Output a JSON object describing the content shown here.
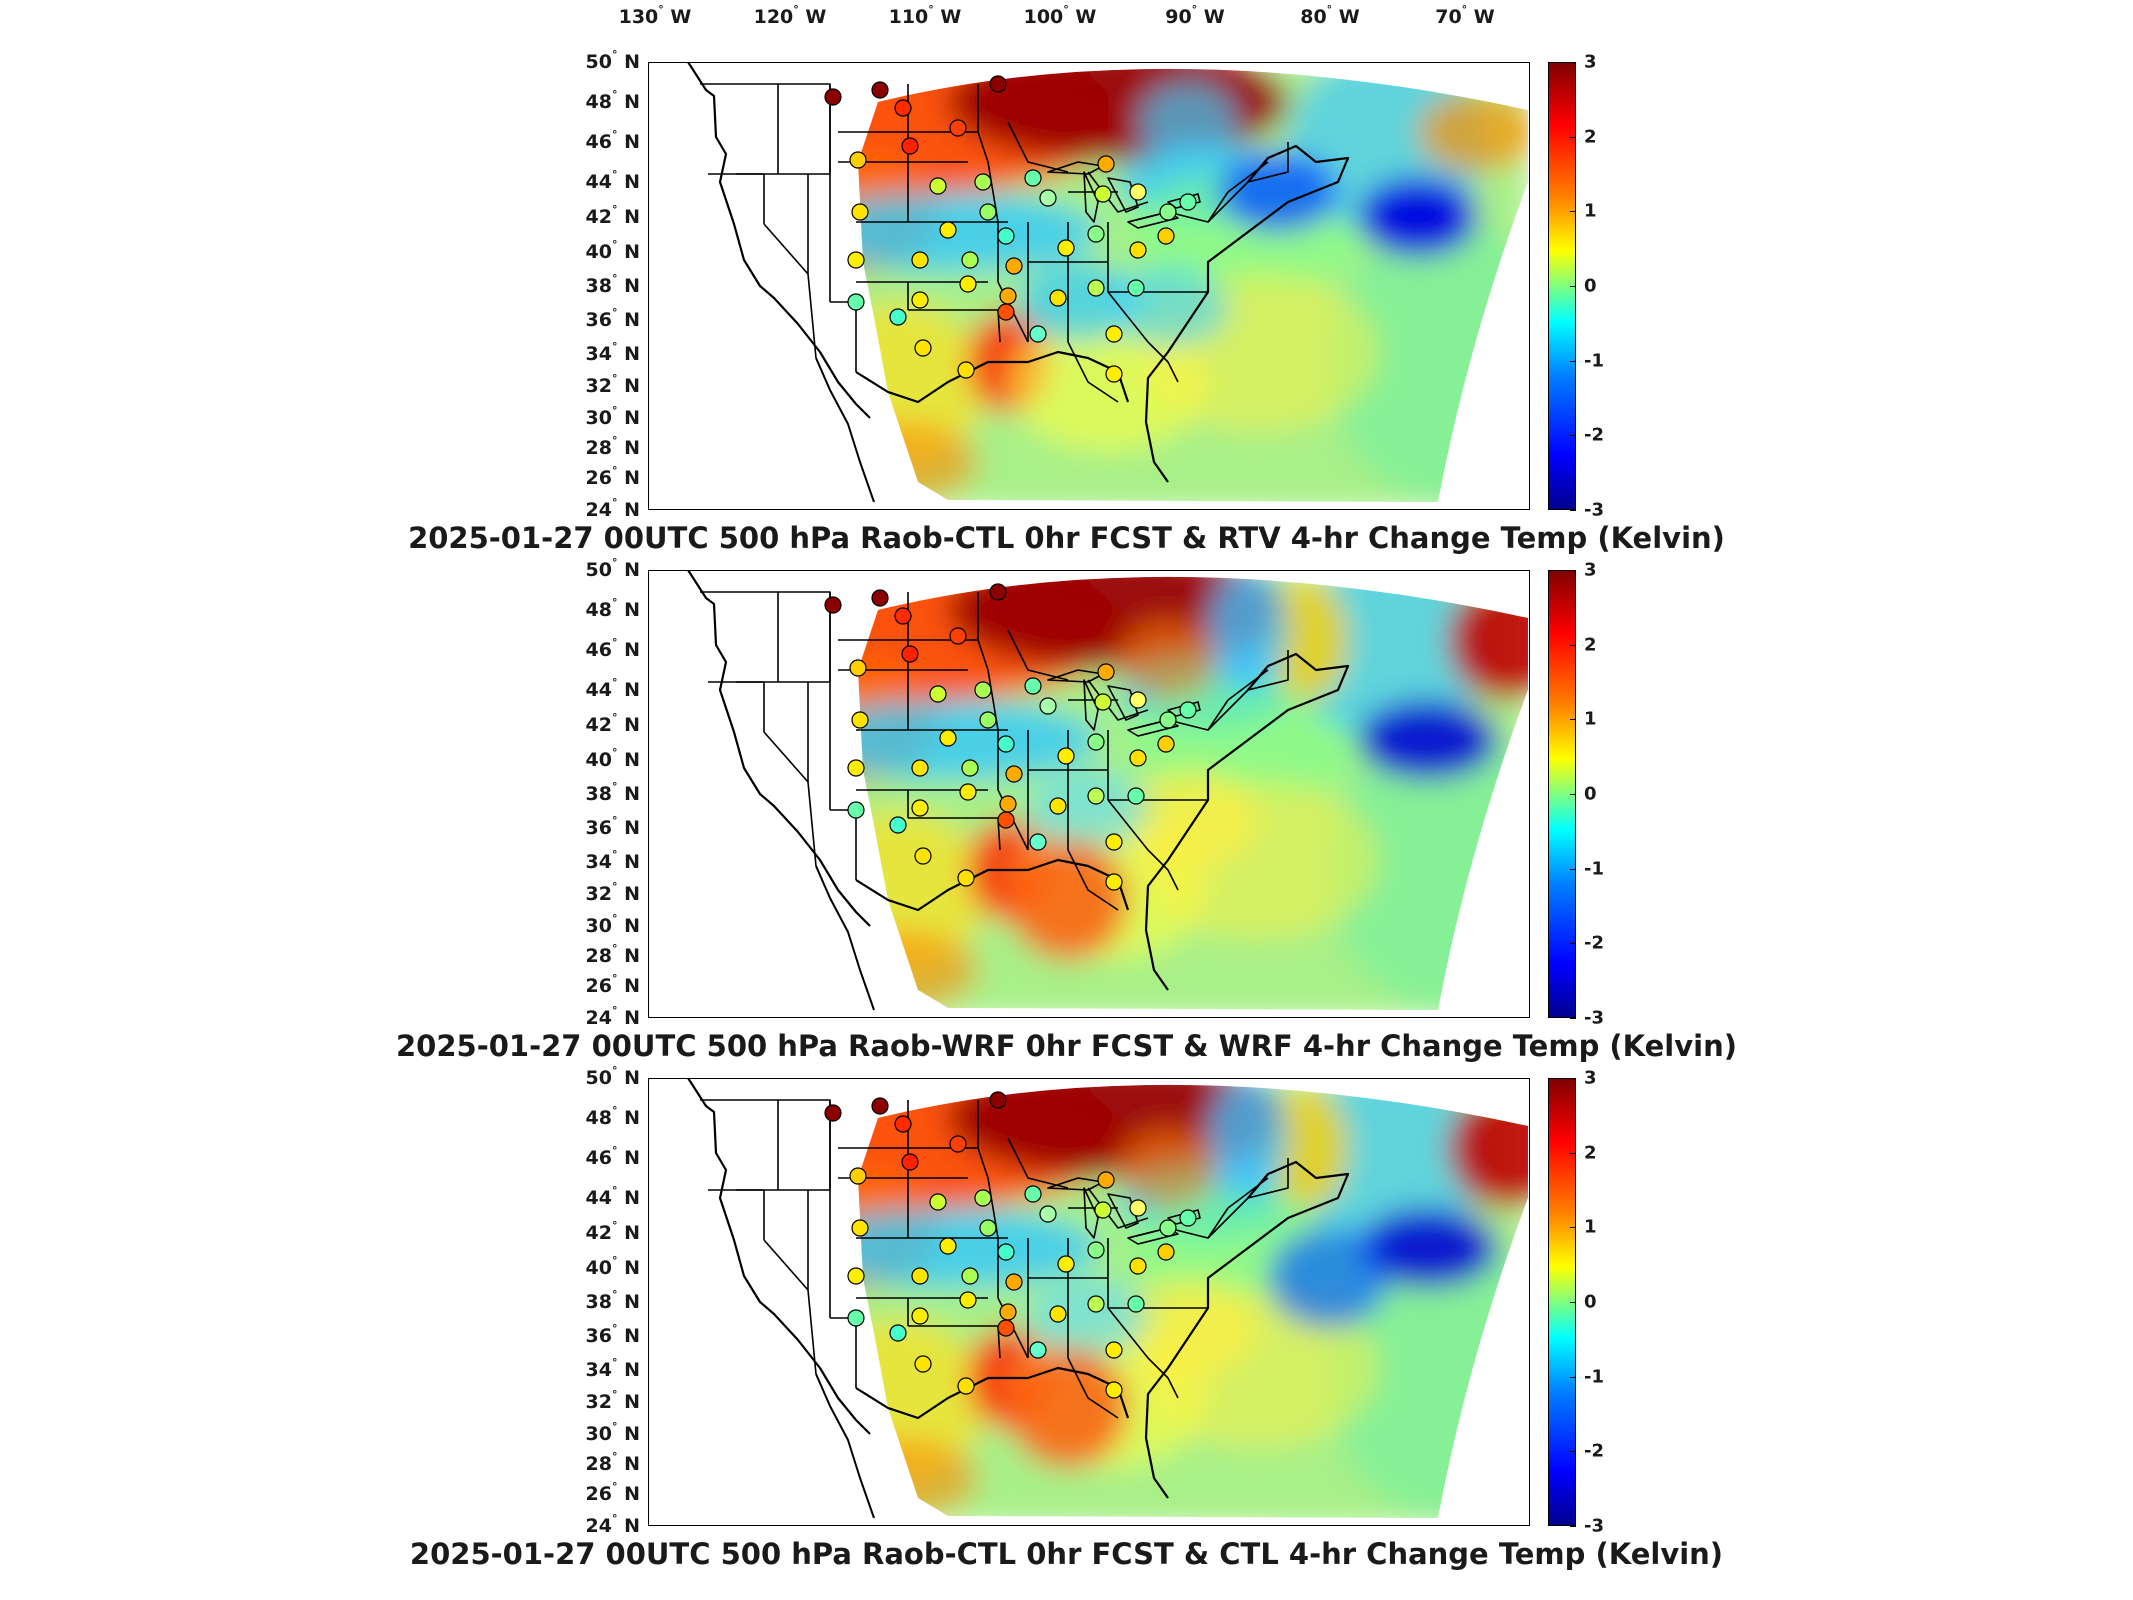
{
  "longitude_labels": [
    {
      "deg": "130",
      "hem": "W"
    },
    {
      "deg": "120",
      "hem": "W"
    },
    {
      "deg": "110",
      "hem": "W"
    },
    {
      "deg": "100",
      "hem": "W"
    },
    {
      "deg": "90",
      "hem": "W"
    },
    {
      "deg": "80",
      "hem": "W"
    },
    {
      "deg": "70",
      "hem": "W"
    }
  ],
  "latitude_labels": [
    {
      "deg": "50",
      "hem": "N"
    },
    {
      "deg": "48",
      "hem": "N"
    },
    {
      "deg": "46",
      "hem": "N"
    },
    {
      "deg": "44",
      "hem": "N"
    },
    {
      "deg": "42",
      "hem": "N"
    },
    {
      "deg": "40",
      "hem": "N"
    },
    {
      "deg": "38",
      "hem": "N"
    },
    {
      "deg": "36",
      "hem": "N"
    },
    {
      "deg": "34",
      "hem": "N"
    },
    {
      "deg": "32",
      "hem": "N"
    },
    {
      "deg": "30",
      "hem": "N"
    },
    {
      "deg": "28",
      "hem": "N"
    },
    {
      "deg": "26",
      "hem": "N"
    },
    {
      "deg": "24",
      "hem": "N"
    }
  ],
  "colorbar": {
    "ticks": [
      "3",
      "2",
      "1",
      "0",
      "-1",
      "-2",
      "-3"
    ],
    "range": [
      -3,
      3
    ],
    "colormap": "jet",
    "colors": [
      "#00008f",
      "#0000ff",
      "#0080ff",
      "#00ffff",
      "#80ff80",
      "#ffff00",
      "#ff8000",
      "#ff0000",
      "#800000"
    ]
  },
  "panels": [
    {
      "title": "2025-01-27 00UTC 500 hPa Raob-CTL 0hr FCST & RTV 4-hr Change Temp (Kelvin)",
      "variant": "rtv"
    },
    {
      "title": "2025-01-27 00UTC 500 hPa Raob-WRF 0hr FCST & WRF 4-hr Change Temp (Kelvin)",
      "variant": "wrf"
    },
    {
      "title": "2025-01-27 00UTC 500 hPa Raob-CTL 0hr FCST & CTL 4-hr Change Temp (Kelvin)",
      "variant": "ctl"
    }
  ]
}
